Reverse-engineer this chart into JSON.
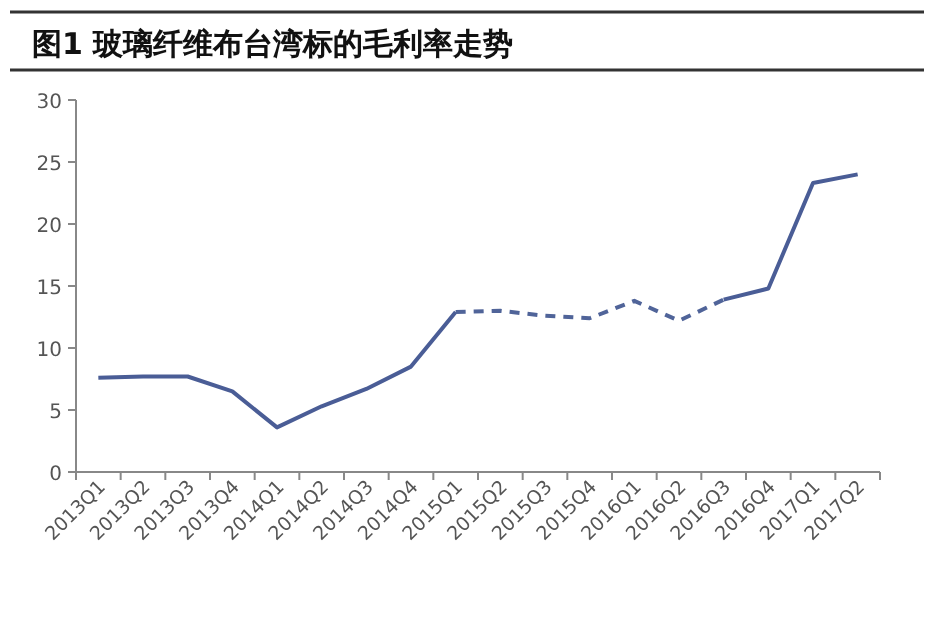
{
  "chart_data": {
    "type": "line",
    "title": "图1  玻璃纤维布台湾标的毛利率走势",
    "categories": [
      "2013Q1",
      "2013Q2",
      "2013Q3",
      "2013Q4",
      "2014Q1",
      "2014Q2",
      "2014Q3",
      "2014Q4",
      "2015Q1",
      "2015Q2",
      "2015Q3",
      "2015Q4",
      "2016Q1",
      "2016Q2",
      "2016Q3",
      "2016Q4",
      "2017Q1",
      "2017Q2"
    ],
    "series": [
      {
        "color": "#4a5d96",
        "line_style": "solid",
        "values": [
          7.6,
          7.7,
          7.7,
          6.5,
          3.6,
          5.3,
          6.7,
          8.5,
          12.9,
          null,
          null,
          null,
          null,
          null,
          13.9,
          14.8,
          23.3,
          24.0
        ]
      },
      {
        "color": "#506499",
        "line_style": "dashed",
        "values": [
          null,
          null,
          null,
          null,
          null,
          null,
          null,
          null,
          12.9,
          13.0,
          12.6,
          12.4,
          13.8,
          12.2,
          13.9,
          null,
          null,
          null
        ]
      }
    ],
    "ylim": [
      0,
      30
    ],
    "yticks": [
      0,
      5,
      10,
      15,
      20,
      25,
      30
    ],
    "grid": false,
    "marker": "none"
  }
}
